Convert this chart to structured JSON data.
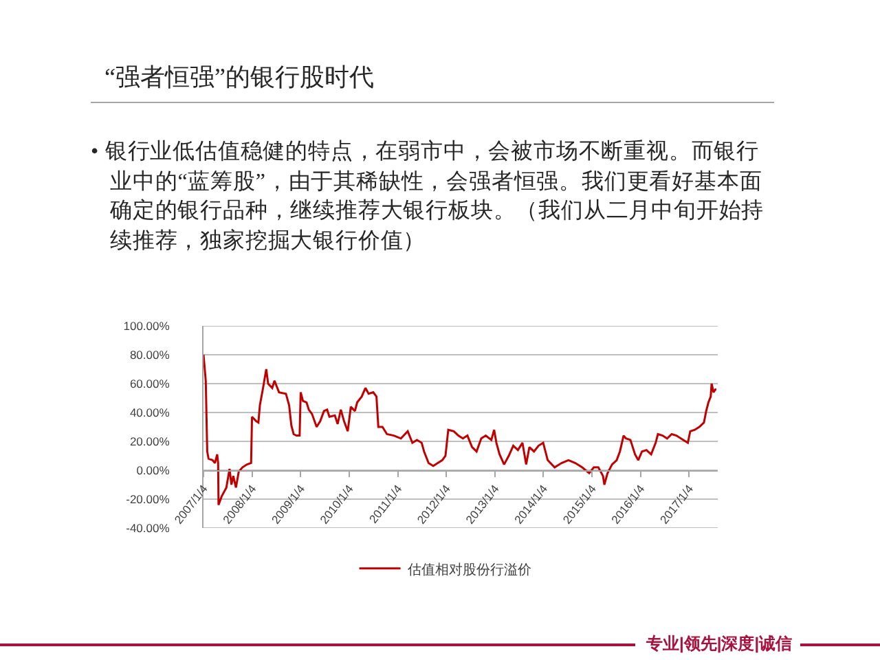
{
  "chart_data": {
    "type": "line",
    "title": "“强者恒强”的银行股时代",
    "subtitle": "• 银行业低估值稳健的特点，在弱市中，会被市场不断重视。而银行业中的“蓝筹股”，由于其稀缺性，会强者恒强。我们更看好基本面确定的银行品种，继续推荐大银行板块。（我们从二月中旬开始持续推荐，独家挖掘大银行价值）",
    "x": [
      "2007-01-04",
      "2007-01-21",
      "2007-02-01",
      "2007-02-11",
      "2007-03-13",
      "2007-03-31",
      "2007-04-17",
      "2007-04-24",
      "2007-04-27",
      "2007-05-21",
      "2007-06-25",
      "2007-07-19",
      "2007-08-02",
      "2007-08-16",
      "2007-09-05",
      "2007-09-26",
      "2007-10-24",
      "2007-11-27",
      "2007-12-28",
      "2008-01-04",
      "2008-02-04",
      "2008-02-21",
      "2008-03-03",
      "2008-03-27",
      "2008-04-20",
      "2008-05-04",
      "2008-06-04",
      "2008-06-21",
      "2008-07-25",
      "2008-09-15",
      "2008-10-09",
      "2008-10-26",
      "2008-11-12",
      "2008-12-03",
      "2008-12-27",
      "2009-01-04",
      "2009-01-21",
      "2009-02-17",
      "2009-03-06",
      "2009-03-30",
      "2009-05-04",
      "2009-05-31",
      "2009-06-28",
      "2009-07-22",
      "2009-08-08",
      "2009-09-18",
      "2009-10-09",
      "2009-11-02",
      "2009-11-26",
      "2009-12-24",
      "2010-01-16",
      "2010-02-16",
      "2010-03-05",
      "2010-04-08",
      "2010-05-06",
      "2010-05-30",
      "2010-07-04",
      "2010-07-28",
      "2010-08-11",
      "2010-09-11",
      "2010-10-15",
      "2010-12-06",
      "2011-01-28",
      "2011-03-20",
      "2011-04-24",
      "2011-05-29",
      "2011-07-03",
      "2011-07-21",
      "2011-08-24",
      "2011-09-28",
      "2011-11-01",
      "2011-12-05",
      "2011-12-29",
      "2012-01-19",
      "2012-03-01",
      "2012-04-04",
      "2012-05-08",
      "2012-06-11",
      "2012-07-16",
      "2012-08-19",
      "2012-09-23",
      "2012-10-27",
      "2012-12-08",
      "2012-12-29",
      "2013-01-15",
      "2013-02-08",
      "2013-03-14",
      "2013-04-18",
      "2013-05-22",
      "2013-06-26",
      "2013-07-30",
      "2013-08-27",
      "2013-09-20",
      "2013-10-25",
      "2013-11-28",
      "2014-01-02",
      "2014-02-05",
      "2014-03-29",
      "2014-05-20",
      "2014-07-11",
      "2014-09-01",
      "2014-10-22",
      "2014-12-14",
      "2015-01-18",
      "2015-02-21",
      "2015-03-28",
      "2015-04-07",
      "2015-05-01",
      "2015-06-04",
      "2015-07-09",
      "2015-08-02",
      "2015-08-30",
      "2015-09-16",
      "2015-10-20",
      "2015-11-24",
      "2015-12-18",
      "2016-01-15",
      "2016-02-18",
      "2016-03-24",
      "2016-04-27",
      "2016-05-14",
      "2016-06-18",
      "2016-07-22",
      "2016-08-26",
      "2016-09-30",
      "2016-11-21",
      "2016-12-25",
      "2017-01-12",
      "2017-02-15",
      "2017-03-21",
      "2017-04-25",
      "2017-05-12",
      "2017-05-29",
      "2017-06-15",
      "2017-06-22",
      "2017-07-06",
      "2017-07-20",
      "2017-07-27"
    ],
    "series": [
      {
        "name": "估值相对股份行溢价",
        "color": "#c00000",
        "values": [
          80,
          62,
          13,
          8,
          7,
          5,
          11,
          5,
          -24,
          -18,
          -12,
          1,
          -10,
          -4,
          -12,
          -1,
          2,
          4,
          5,
          37,
          34,
          33,
          45,
          57,
          70,
          60,
          57,
          62,
          54,
          53,
          45,
          31,
          25,
          24,
          24,
          54,
          48,
          47,
          42,
          39,
          30,
          34,
          41,
          42,
          37,
          38,
          32,
          42,
          34,
          27,
          44,
          41,
          47,
          51,
          57,
          53,
          54,
          51,
          30,
          30,
          25,
          24,
          22,
          27,
          19,
          21,
          19,
          13,
          5,
          3,
          5,
          7,
          10,
          28,
          27,
          24,
          22,
          24,
          16,
          13,
          22,
          24,
          21,
          28,
          19,
          11,
          4,
          10,
          17,
          14,
          19,
          4,
          16,
          13,
          17,
          19,
          7,
          2,
          5,
          7,
          5,
          2,
          -2,
          2,
          2,
          -4,
          -10,
          -2,
          4,
          7,
          13,
          24,
          22,
          21,
          11,
          7,
          13,
          14,
          11,
          19,
          25,
          24,
          22,
          25,
          24,
          21,
          19,
          27,
          28,
          30,
          33,
          41,
          47,
          51,
          60,
          54,
          56,
          56
        ]
      }
    ],
    "xlim": [
      "2007-01-04",
      "2017-08-07"
    ],
    "xticks": [
      {
        "value": "2007-01-04",
        "label": "2007/1/4"
      },
      {
        "value": "2008-01-04",
        "label": "2008/1/4"
      },
      {
        "value": "2009-01-04",
        "label": "2009/1/4"
      },
      {
        "value": "2010-01-04",
        "label": "2010/1/4"
      },
      {
        "value": "2011-01-04",
        "label": "2011/1/4"
      },
      {
        "value": "2012-01-04",
        "label": "2012/1/4"
      },
      {
        "value": "2013-01-04",
        "label": "2013/1/4"
      },
      {
        "value": "2014-01-04",
        "label": "2014/1/4"
      },
      {
        "value": "2015-01-04",
        "label": "2015/1/4"
      },
      {
        "value": "2016-01-04",
        "label": "2016/1/4"
      },
      {
        "value": "2017-01-04",
        "label": "2017/1/4"
      }
    ],
    "ylim": [
      -40,
      100
    ],
    "yticks": [
      {
        "value": -40,
        "label": "-40.00%"
      },
      {
        "value": -20,
        "label": "-20.00%"
      },
      {
        "value": 0,
        "label": "0.00%"
      },
      {
        "value": 20,
        "label": "20.00%"
      },
      {
        "value": 40,
        "label": "40.00%"
      },
      {
        "value": 60,
        "label": "60.00%"
      },
      {
        "value": 80,
        "label": "80.00%"
      },
      {
        "value": 100,
        "label": "100.00%"
      }
    ],
    "grid": "y",
    "legend": "bottom",
    "marker": "none",
    "line_style": "solid",
    "annotations": [
      "专业|领先|深度|诚信"
    ]
  }
}
